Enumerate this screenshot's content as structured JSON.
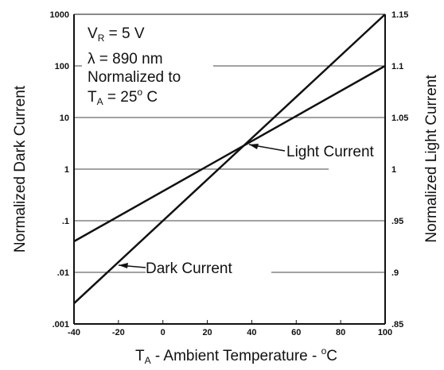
{
  "chart_data": {
    "type": "line",
    "x": [
      -40,
      100
    ],
    "series": [
      {
        "name": "Dark Current",
        "axis": "left",
        "values": [
          0.0025,
          1000
        ]
      },
      {
        "name": "Light Current",
        "axis": "right",
        "values": [
          0.93,
          1.1
        ]
      }
    ],
    "xlim": [
      -40,
      100
    ],
    "xticks": [
      "-40",
      "-20",
      "0",
      "20",
      "40",
      "60",
      "80",
      "100"
    ],
    "ylim_left": [
      0.001,
      1000
    ],
    "yscale_left": "log",
    "yticks_left": [
      ".001",
      ".01",
      ".1",
      "1",
      "10",
      "100",
      "1000"
    ],
    "ylim_right": [
      0.85,
      1.15
    ],
    "yticks_right": [
      ".85",
      ".9",
      ".95",
      "1",
      "1.05",
      "1.1",
      "1.15"
    ],
    "xlabel": {
      "main": "T",
      "sub": "A",
      "rest": " - Ambient Temperature - ",
      "sup": "o",
      "unit": "C"
    },
    "ylabel_left": "Normalized Dark Current",
    "ylabel_right": "Normalized Light Current",
    "conditions": [
      {
        "main": "V",
        "sub": "R",
        "rest": " = 5 V"
      },
      {
        "main": "λ = 890 nm"
      },
      {
        "main": "Normalized to"
      },
      {
        "main": "T",
        "sub": "A",
        "rest": " = 25",
        "sup": "o",
        "unit": " C"
      }
    ],
    "annotations": [
      "Light Current",
      "Dark Current"
    ],
    "grid": "horizontal"
  }
}
